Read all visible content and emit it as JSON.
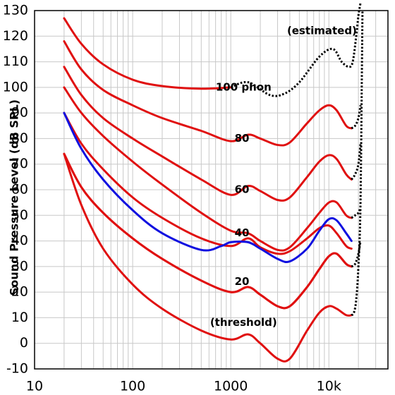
{
  "chart_data": {
    "type": "line",
    "title": "",
    "xlabel": "",
    "ylabel": "Sound Pressure Level (dB SPL)",
    "x_scale": "log",
    "xlim": [
      10,
      40000
    ],
    "ylim": [
      -10,
      130
    ],
    "x_ticks": [
      10,
      100,
      1000,
      10000
    ],
    "x_tick_labels": [
      "10",
      "100",
      "1000",
      "10k"
    ],
    "y_ticks": [
      -10,
      0,
      10,
      20,
      30,
      40,
      50,
      60,
      70,
      80,
      90,
      100,
      110,
      120,
      130
    ],
    "y_tick_labels": [
      "-10",
      "0",
      "10",
      "20",
      "30",
      "40",
      "50",
      "60",
      "70",
      "80",
      "90",
      "100",
      "110",
      "120",
      "130"
    ],
    "grid": true,
    "colors": {
      "contour": "#e01010",
      "reference": "#1010e0",
      "estimated": "#000000",
      "grid": "#c8c8c8"
    },
    "annotations": [
      {
        "text": "(estimated)",
        "x": 8500,
        "y": 122
      },
      {
        "text": "100 phon",
        "x": 1350,
        "y": 100
      },
      {
        "text": "80",
        "x": 1300,
        "y": 80
      },
      {
        "text": "60",
        "x": 1300,
        "y": 60
      },
      {
        "text": "40",
        "x": 1300,
        "y": 43
      },
      {
        "text": "20",
        "x": 1300,
        "y": 24
      },
      {
        "text": "(threshold)",
        "x": 1350,
        "y": 8
      }
    ],
    "series": [
      {
        "name": "",
        "color": "#e01010",
        "x": [
          20,
          30,
          50,
          100,
          200,
          500,
          1000
        ],
        "y": [
          127,
          117,
          109,
          103,
          100.5,
          99.5,
          100
        ]
      },
      {
        "name": "",
        "color": "#000000",
        "dashed": true,
        "x": [
          1000,
          1500,
          2500,
          3500,
          5000,
          8000,
          11000,
          13500,
          16000,
          17500,
          19000,
          20000,
          21000
        ],
        "y": [
          100,
          102,
          97,
          97.5,
          102,
          112,
          115,
          110,
          108,
          110,
          120,
          128,
          133
        ]
      },
      {
        "name": "",
        "color": "#e01010",
        "x": [
          20,
          30,
          50,
          100,
          200,
          500,
          1000,
          1500,
          2000,
          3000,
          4000,
          6000,
          8000,
          10000,
          12000,
          15000,
          17000
        ],
        "y": [
          118,
          107,
          99,
          93,
          88,
          83,
          79,
          81.5,
          80,
          77.5,
          78.5,
          86,
          91,
          93,
          91,
          85,
          84
        ]
      },
      {
        "name": "",
        "color": "#000000",
        "dashed": true,
        "x": [
          17000,
          18500,
          20000,
          21000
        ],
        "y": [
          84,
          85,
          88,
          93
        ]
      },
      {
        "name": "",
        "color": "#e01010",
        "x": [
          20,
          30,
          50,
          100,
          200,
          500,
          1000,
          1500,
          2000,
          3000,
          4000,
          6000,
          8000,
          10000,
          12000,
          15000,
          17000
        ],
        "y": [
          108,
          97,
          88,
          80,
          73,
          64,
          58,
          61.5,
          59.5,
          56,
          57,
          65,
          71,
          73.5,
          72,
          66,
          64
        ]
      },
      {
        "name": "",
        "color": "#000000",
        "dashed": true,
        "x": [
          17000,
          18500,
          20000,
          21000
        ],
        "y": [
          64,
          66,
          70,
          78
        ]
      },
      {
        "name": "",
        "color": "#e01010",
        "x": [
          20,
          30,
          50,
          100,
          200,
          500,
          1000,
          1500,
          2000,
          3000,
          4000,
          6000,
          8000,
          10000,
          12000,
          15000,
          17000
        ],
        "y": [
          100,
          90,
          81,
          71,
          62,
          51,
          44,
          43,
          40,
          36.5,
          37.5,
          45,
          51,
          55,
          55,
          50,
          49
        ]
      },
      {
        "name": "",
        "color": "#000000",
        "dashed": true,
        "x": [
          17000,
          18500,
          20000,
          21000
        ],
        "y": [
          49,
          50,
          51,
          53
        ]
      },
      {
        "name": "",
        "color": "#e01010",
        "x": [
          20,
          30,
          50,
          100,
          200,
          500,
          1000,
          1500,
          2000,
          3000,
          4000,
          6000,
          8000,
          10000,
          12000,
          15000,
          17000
        ],
        "y": [
          90,
          78,
          68,
          57,
          49,
          41,
          38,
          41,
          37.5,
          35,
          36,
          41,
          45,
          46,
          43,
          38,
          37
        ]
      },
      {
        "name": "",
        "color": "#e01010",
        "x": [
          20,
          30,
          50,
          100,
          200,
          500,
          1000,
          1500,
          2000,
          3000,
          4000,
          6000,
          8000,
          10000,
          12000,
          15000,
          17000
        ],
        "y": [
          74,
          61,
          51,
          41,
          33,
          24.5,
          20,
          22,
          19,
          14.5,
          14.5,
          22,
          29,
          34,
          35,
          31,
          30
        ]
      },
      {
        "name": "",
        "color": "#e01010",
        "x": [
          20,
          30,
          50,
          100,
          200,
          500,
          1000,
          1500,
          2000,
          3000,
          4000,
          6000,
          8000,
          10000,
          12000,
          15000,
          17000
        ],
        "y": [
          74,
          61,
          51,
          41,
          33,
          24.5,
          20,
          22,
          19,
          14.5,
          14.5,
          22,
          29,
          34,
          35,
          31,
          30
        ]
      },
      {
        "name": "",
        "color": "#000000",
        "dashed": true,
        "x": [
          17000,
          18500,
          20000,
          21000
        ],
        "y": [
          30,
          31,
          35,
          40
        ]
      },
      {
        "name": "",
        "color": "#e01010",
        "x": [
          20,
          30,
          50,
          100,
          200,
          500,
          1000,
          1500,
          2000,
          3000,
          4000,
          6000,
          8000,
          10000,
          12000,
          15000,
          17000
        ],
        "y": [
          74,
          54,
          37,
          23,
          13.5,
          5,
          1.5,
          3.5,
          0,
          -6,
          -6,
          5,
          12,
          14.5,
          13.5,
          11,
          11
        ]
      },
      {
        "name": "",
        "color": "#000000",
        "dashed": true,
        "x": [
          17000,
          18000,
          19000,
          20000,
          21000,
          22000
        ],
        "y": [
          11,
          12,
          17,
          30,
          55,
          130
        ]
      },
      {
        "name": "",
        "color": "#1010e0",
        "x": [
          20,
          30,
          50,
          100,
          200,
          500,
          800,
          1000,
          1500,
          2000,
          3000,
          4000,
          6000,
          8000,
          10000,
          12000,
          15000,
          17000
        ],
        "y": [
          90,
          76,
          64,
          52,
          43,
          36.5,
          38,
          39.5,
          39.5,
          37,
          33,
          32,
          37,
          44,
          48.5,
          48,
          43,
          40
        ]
      }
    ]
  }
}
